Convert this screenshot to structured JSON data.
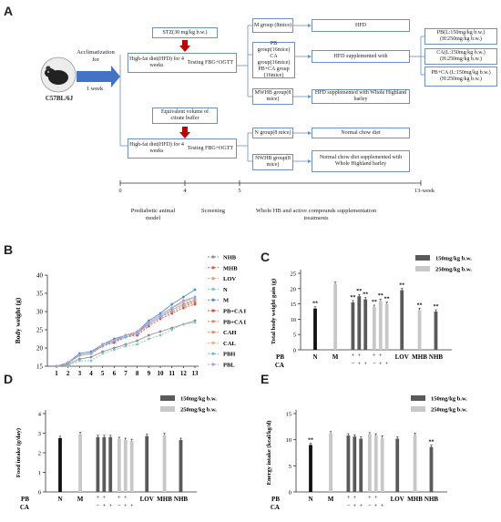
{
  "panels": {
    "a": "A",
    "b": "B",
    "c": "C",
    "d": "D",
    "e": "E"
  },
  "flowchart": {
    "mouse_label": "C57BL/6J",
    "acclim": "Acclimatization for",
    "acclim_time": "1 week",
    "stz": "STZ(30 mg/kg b.w.)",
    "buffer": "Equivalent volume of citrate buffer",
    "hfd_top": "High-fat diet(HFD) for 4 weeks",
    "testing_top": "Testing FBG+OGTT",
    "hfd_bottom": "High-fat diet(HFD) for 4 weeks",
    "testing_bottom": "Testing FBG+OGTT",
    "groups": [
      "M group (8mice)",
      "PB group(16mice)",
      "CA group(16mice)",
      "PB+CA group (16mice)",
      "MWHB group(8 mice)",
      "N group(8 mice)",
      "NWHB group(8 mice)"
    ],
    "diets": [
      "HFD",
      "HFD supplemented with",
      "HFD supplemented with Whole Highland barley",
      "Normal chow diet",
      "Normal chow diet supplemented with Whole Highland barley"
    ],
    "doses": [
      "PB(L:150mg/kg b.w.) (H:250mg/kg b.w.)",
      "CA(L:150mg/kg b.w.) (H:250mg/kg b.w.)",
      "PB+CA (L:150mg/kg b.w.) (H:250mg/kg b.w.)"
    ],
    "timeline_ticks": [
      "0",
      "4",
      "5",
      "13-week"
    ],
    "phases": [
      "Prediabetic animal model",
      "Screening",
      "Whole HB and active compounds supplementation treatments"
    ]
  },
  "colors": {
    "flow_border": "#6b8fc8",
    "arrow_blue": "#4472c4",
    "arrow_red": "#c00000",
    "dark_bar": "#5a5a5a",
    "light_bar": "#c8c8c8",
    "black_bar": "#111111"
  },
  "chart_data": [
    {
      "type": "line",
      "xlabel": "Week",
      "ylabel": "Body weight (g)",
      "ylim": [
        15,
        40
      ],
      "yticks": [
        15,
        20,
        25,
        30,
        35,
        40
      ],
      "x": [
        1,
        2,
        3,
        4,
        5,
        6,
        7,
        8,
        9,
        10,
        11,
        12,
        13
      ],
      "legend_position": "right",
      "series": [
        {
          "name": "NHB",
          "color": "#8c8c8c",
          "values": [
            15,
            15.5,
            17,
            17.5,
            19,
            20,
            21,
            22,
            23.5,
            24.5,
            25.5,
            26.5,
            27.5
          ]
        },
        {
          "name": "MHB",
          "color": "#e8583c",
          "values": [
            15,
            15.8,
            18,
            18.5,
            20.5,
            22,
            23,
            24,
            26.5,
            28.5,
            30,
            31.5,
            32.5
          ]
        },
        {
          "name": "LOV",
          "color": "#f0a060",
          "values": [
            15,
            16,
            18,
            18.5,
            20.5,
            22,
            23,
            24,
            26.5,
            28.5,
            30.5,
            32,
            33
          ]
        },
        {
          "name": "N",
          "color": "#7ec8c8",
          "values": [
            15,
            15.2,
            16.5,
            16.5,
            18.5,
            19.5,
            20.5,
            21,
            22.5,
            23.5,
            25,
            26.5,
            27
          ]
        },
        {
          "name": "M",
          "color": "#4a90d9",
          "values": [
            15,
            16,
            18.5,
            19,
            21,
            22.5,
            23.5,
            24.5,
            27.5,
            29.5,
            32,
            34,
            36
          ]
        },
        {
          "name": "PB+CA H",
          "color": "#e04848",
          "values": [
            15,
            15.8,
            18,
            18.5,
            20.5,
            21.5,
            23,
            23.5,
            26,
            28,
            29.5,
            31,
            32
          ]
        },
        {
          "name": "PB+CA L",
          "color": "#f08060",
          "values": [
            15,
            16,
            18,
            18.5,
            21,
            22,
            23.5,
            24,
            27,
            29,
            31,
            33,
            34
          ]
        },
        {
          "name": "CAH",
          "color": "#e89060",
          "values": [
            15,
            15.8,
            18,
            18.5,
            20.5,
            22,
            23,
            24,
            26.5,
            28.5,
            30,
            31.5,
            33
          ]
        },
        {
          "name": "CAL",
          "color": "#f0b080",
          "values": [
            15,
            16,
            18,
            18.5,
            20.5,
            22,
            23.5,
            24.5,
            27,
            29,
            31,
            32.5,
            34
          ]
        },
        {
          "name": "PBH",
          "color": "#70b8e8",
          "values": [
            15,
            15.8,
            18,
            18.5,
            20.5,
            22,
            23,
            24,
            26.5,
            28.5,
            30.5,
            32,
            33.5
          ]
        },
        {
          "name": "PBL",
          "color": "#a8a0d8",
          "values": [
            15,
            16,
            18,
            18.5,
            21,
            22,
            23.5,
            24.5,
            27,
            29,
            31,
            33,
            34
          ]
        }
      ]
    },
    {
      "type": "bar",
      "ylabel": "Total body weight gain (g)",
      "ylim": [
        0,
        25
      ],
      "yticks": [
        0,
        5,
        10,
        15,
        20,
        25
      ],
      "legend": [
        "150mg/kg b.w.",
        "250mg/kg b.w."
      ],
      "bar_labels": [
        "N",
        "M",
        "PB+CA",
        "LOV",
        "MHB",
        "NHB"
      ],
      "pb_row": [
        "+",
        "+",
        "+",
        "+"
      ],
      "ca_row": [
        "−",
        "+",
        "+",
        "−",
        "+",
        "+"
      ],
      "row_labels": [
        "PB",
        "CA"
      ],
      "bars": [
        {
          "label": "N",
          "value": 13.5,
          "shade": "black",
          "sig": "**"
        },
        {
          "label": "M",
          "value": 21.5,
          "shade": "light",
          "sig": ""
        },
        {
          "label": "PB 150",
          "value": 15.5,
          "shade": "dark",
          "sig": "**"
        },
        {
          "label": "PB 150+CA",
          "value": 17.5,
          "shade": "dark",
          "sig": "**"
        },
        {
          "label": "PB 150+CA",
          "value": 16.5,
          "shade": "dark",
          "sig": "**"
        },
        {
          "label": "PB 250",
          "value": 14,
          "shade": "light",
          "sig": "**"
        },
        {
          "label": "PB 250+CA",
          "value": 16,
          "shade": "light",
          "sig": "**"
        },
        {
          "label": "PB 250+CA",
          "value": 15,
          "shade": "light",
          "sig": "**"
        },
        {
          "label": "LOV",
          "value": 19.5,
          "shade": "dark",
          "sig": "**"
        },
        {
          "label": "MHB",
          "value": 13,
          "shade": "light",
          "sig": "**"
        },
        {
          "label": "NHB",
          "value": 12.5,
          "shade": "dark",
          "sig": "**"
        }
      ]
    },
    {
      "type": "bar",
      "ylabel": "Food intake (g/day)",
      "ylim": [
        0,
        4
      ],
      "yticks": [
        0,
        1,
        2,
        3,
        4
      ],
      "legend": [
        "150mg/kg b.w.",
        "250mg/kg b.w."
      ],
      "bar_labels": [
        "N",
        "M",
        "PB+CA",
        "LOV",
        "MHB",
        "NHB"
      ],
      "pb_row": [
        "+",
        "+",
        "+",
        "+"
      ],
      "ca_row": [
        "−",
        "+",
        "+",
        "−",
        "+",
        "+"
      ],
      "row_labels": [
        "PB",
        "CA"
      ],
      "bars": [
        {
          "label": "N",
          "value": 2.75,
          "shade": "black",
          "sig": ""
        },
        {
          "label": "M",
          "value": 2.95,
          "shade": "light",
          "sig": ""
        },
        {
          "label": "PB 150",
          "value": 2.8,
          "shade": "dark",
          "sig": ""
        },
        {
          "label": "PB 150+CA",
          "value": 2.8,
          "shade": "dark",
          "sig": ""
        },
        {
          "label": "PB 150+CA",
          "value": 2.8,
          "shade": "dark",
          "sig": ""
        },
        {
          "label": "PB 250",
          "value": 2.7,
          "shade": "light",
          "sig": ""
        },
        {
          "label": "PB 250+CA",
          "value": 2.65,
          "shade": "light",
          "sig": ""
        },
        {
          "label": "PB 250+CA",
          "value": 2.6,
          "shade": "light",
          "sig": ""
        },
        {
          "label": "LOV",
          "value": 2.85,
          "shade": "dark",
          "sig": ""
        },
        {
          "label": "MHB",
          "value": 2.9,
          "shade": "light",
          "sig": ""
        },
        {
          "label": "NHB",
          "value": 2.65,
          "shade": "dark",
          "sig": ""
        }
      ]
    },
    {
      "type": "bar",
      "ylabel": "Energy intake (kcal/kg/d)",
      "ylim": [
        0,
        15
      ],
      "yticks": [
        0,
        5,
        10,
        15
      ],
      "legend": [
        "150mg/kg b.w.",
        "250mg/kg b.w."
      ],
      "bar_labels": [
        "N",
        "M",
        "PB+CA",
        "LOV",
        "MHB",
        "NHB"
      ],
      "pb_row": [
        "+",
        "+",
        "+",
        "+"
      ],
      "ca_row": [
        "−",
        "+",
        "+",
        "−",
        "+",
        "+"
      ],
      "row_labels": [
        "PB",
        "CA"
      ],
      "bars": [
        {
          "label": "N",
          "value": 9,
          "shade": "black",
          "sig": "**"
        },
        {
          "label": "M",
          "value": 11.2,
          "shade": "light",
          "sig": ""
        },
        {
          "label": "PB 150",
          "value": 10.8,
          "shade": "dark",
          "sig": ""
        },
        {
          "label": "PB 150+CA",
          "value": 10.6,
          "shade": "dark",
          "sig": ""
        },
        {
          "label": "PB 150+CA",
          "value": 10.2,
          "shade": "dark",
          "sig": ""
        },
        {
          "label": "PB 250",
          "value": 11,
          "shade": "light",
          "sig": ""
        },
        {
          "label": "PB 250+CA",
          "value": 10.8,
          "shade": "light",
          "sig": ""
        },
        {
          "label": "PB 250+CA",
          "value": 10.4,
          "shade": "light",
          "sig": ""
        },
        {
          "label": "LOV",
          "value": 10.2,
          "shade": "dark",
          "sig": ""
        },
        {
          "label": "MHB",
          "value": 10.9,
          "shade": "light",
          "sig": ""
        },
        {
          "label": "NHB",
          "value": 8.6,
          "shade": "dark",
          "sig": "**"
        }
      ]
    }
  ]
}
